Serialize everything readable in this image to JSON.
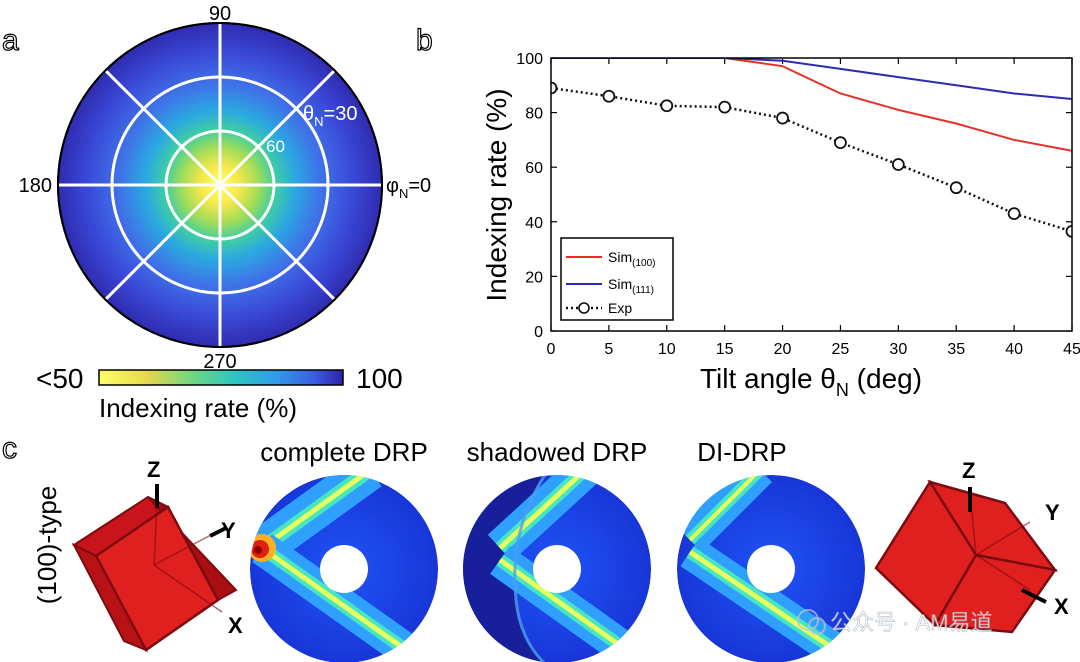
{
  "panel_labels": {
    "a": "a",
    "b": "b",
    "c": "c"
  },
  "panel_a": {
    "angle_labels": {
      "top": "90",
      "left": "180",
      "bottom": "270"
    },
    "theta_label": "θ",
    "theta_sub": "N",
    "theta_value": "=30",
    "ring_60": "60",
    "phi_label": "φ",
    "phi_sub": "N",
    "phi_value": "=0",
    "colorbar": {
      "min_label": "<50",
      "max_label": "100",
      "title": "Indexing rate (%)"
    }
  },
  "chart_data": {
    "type": "line",
    "x": [
      0,
      5,
      10,
      15,
      20,
      25,
      30,
      35,
      40,
      45
    ],
    "xlim": [
      0,
      45
    ],
    "ylim": [
      0,
      100
    ],
    "xticks": [
      "0",
      "5",
      "10",
      "15",
      "20",
      "25",
      "30",
      "35",
      "40",
      "45"
    ],
    "yticks": [
      "0",
      "20",
      "40",
      "60",
      "80",
      "100"
    ],
    "xlabel_main": "Tilt angle θ",
    "xlabel_sub": "N",
    "xlabel_tail": " (deg)",
    "ylabel": "Indexing rate (%)",
    "legend_position": "bottom-left",
    "series": [
      {
        "name": "Sim",
        "sub": "(100)",
        "color": "#e8302a",
        "style": "solid",
        "values": [
          100,
          100,
          100,
          100,
          97,
          87,
          81,
          76,
          70,
          66
        ]
      },
      {
        "name": "Sim",
        "sub": "(111)",
        "color": "#2b2bb5",
        "style": "solid",
        "values": [
          100,
          100,
          100,
          100,
          99,
          96,
          93,
          90,
          87,
          85
        ]
      },
      {
        "name": "Exp",
        "sub": "",
        "color": "#111111",
        "style": "dotted-circle",
        "values": [
          89,
          86,
          82.5,
          82,
          78,
          69,
          61,
          52.5,
          43,
          36.5
        ]
      }
    ]
  },
  "panel_c": {
    "row_label": "(100)-type",
    "titles": [
      "complete DRP",
      "shadowed DRP",
      "DI-DRP"
    ],
    "axes": {
      "z": "Z",
      "y": "Y",
      "x": "X"
    },
    "cube_color": "#e0201e",
    "watermark": "公众号 · AM易道"
  }
}
